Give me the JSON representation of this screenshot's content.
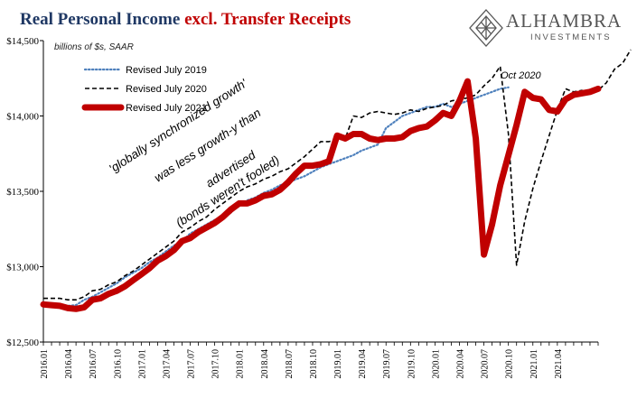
{
  "header": {
    "title_part1": "Real Personal Income ",
    "title_part2": "excl. Transfer Receipts",
    "title_color1": "#1f3864",
    "title_color2": "#c00000"
  },
  "logo": {
    "name": "ALHAMBRA",
    "subtitle": "INVESTMENTS",
    "icon": "alhambra-diamond-icon"
  },
  "chart_data": {
    "type": "line",
    "unit_label": "billions of $s, SAAR",
    "ylim": [
      12500,
      14500
    ],
    "yticks": [
      12500,
      13000,
      13500,
      14000,
      14500
    ],
    "ytick_labels": [
      "$12,500",
      "$13,000",
      "$13,500",
      "$14,000",
      "$14,500"
    ],
    "x_labels": [
      "2016.01",
      "2016.04",
      "2016.07",
      "2016.10",
      "2017.01",
      "2017.04",
      "2017.07",
      "2017.10",
      "2018.01",
      "2018.04",
      "2018.07",
      "2018.10",
      "2019.01",
      "2019.04",
      "2019.07",
      "2019.10",
      "2020.01",
      "2020.04",
      "2020.07",
      "2020.10",
      "2021.01",
      "2021.04"
    ],
    "grid": false,
    "legend_position": "top-left",
    "series": [
      {
        "name": "Revised July 2019",
        "color": "#4f81bd",
        "style": "dotted",
        "start": "2016.01",
        "values": [
          12750,
          12755,
          12750,
          12740,
          12745,
          12780,
          12800,
          12830,
          12860,
          12890,
          12930,
          12960,
          12990,
          13030,
          13060,
          13100,
          13140,
          13170,
          13220,
          13250,
          13280,
          13310,
          13330,
          13360,
          13410,
          13440,
          13460,
          13490,
          13510,
          13540,
          13560,
          13580,
          13600,
          13630,
          13660,
          13680,
          13700,
          13720,
          13740,
          13770,
          13790,
          13810,
          13920,
          13960,
          14000,
          14020,
          14040,
          14060,
          14060,
          14080,
          14060,
          14080,
          14100,
          14120,
          14140,
          14160,
          14180,
          14190
        ]
      },
      {
        "name": "Revised July 2020",
        "color": "#000000",
        "style": "dashed",
        "start": "2016.01",
        "values": [
          12790,
          12790,
          12790,
          12780,
          12780,
          12800,
          12840,
          12850,
          12880,
          12900,
          12940,
          12970,
          13010,
          13050,
          13090,
          13130,
          13170,
          13230,
          13260,
          13300,
          13330,
          13380,
          13420,
          13460,
          13500,
          13530,
          13550,
          13580,
          13600,
          13630,
          13650,
          13690,
          13730,
          13780,
          13830,
          13830,
          13840,
          13850,
          14000,
          13990,
          14020,
          14030,
          14020,
          14010,
          14020,
          14040,
          14030,
          14050,
          14060,
          14070,
          14100,
          14110,
          14120,
          14140,
          14200,
          14250,
          14330,
          13880,
          13010,
          13300,
          13520,
          13700,
          13870,
          14040,
          14180,
          14160,
          14170,
          14150,
          14170,
          14220,
          14310,
          14350,
          14440
        ]
      },
      {
        "name": "Revised July 2021",
        "color": "#c00000",
        "style": "solid",
        "start": "2016.01",
        "values": [
          12750,
          12745,
          12740,
          12725,
          12720,
          12730,
          12780,
          12790,
          12820,
          12840,
          12870,
          12910,
          12950,
          12990,
          13040,
          13070,
          13110,
          13170,
          13190,
          13230,
          13260,
          13290,
          13330,
          13380,
          13420,
          13420,
          13440,
          13470,
          13480,
          13510,
          13560,
          13620,
          13670,
          13670,
          13680,
          13700,
          13870,
          13850,
          13880,
          13880,
          13850,
          13840,
          13850,
          13850,
          13860,
          13900,
          13920,
          13930,
          13970,
          14020,
          14000,
          14100,
          14230,
          13850,
          13080,
          13280,
          13540,
          13740,
          13940,
          14160,
          14120,
          14110,
          14040,
          14030,
          14110,
          14140,
          14150,
          14160,
          14180
        ]
      }
    ],
    "annotations": [
      {
        "text": "'globally synchronized growth'",
        "role": "note"
      },
      {
        "text": "was less growth-y than",
        "role": "note"
      },
      {
        "text": "advertised",
        "role": "note"
      },
      {
        "text": "(bonds weren't fooled)",
        "role": "note"
      },
      {
        "text": "Oct 2020",
        "role": "point-label"
      }
    ]
  }
}
